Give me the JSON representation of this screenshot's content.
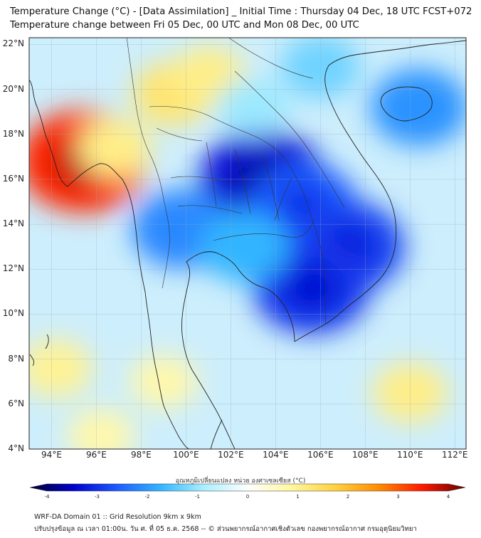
{
  "header": {
    "title_line1": "Temperature Change (°C) - [Data Assimilation] _ Initial Time : Thursday 04 Dec, 18 UTC FCST+072",
    "title_line2": "Temperature change between Fri 05 Dec, 00 UTC and Mon 08 Dec, 00 UTC"
  },
  "map": {
    "lat_labels": [
      "22°N",
      "20°N",
      "18°N",
      "16°N",
      "14°N",
      "12°N",
      "10°N",
      "8°N",
      "6°N",
      "4°N"
    ],
    "lon_labels": [
      "94°E",
      "96°E",
      "98°E",
      "100°E",
      "102°E",
      "104°E",
      "106°E",
      "108°E",
      "110°E",
      "112°E"
    ],
    "lat_values": [
      22,
      20,
      18,
      16,
      14,
      12,
      10,
      8,
      6,
      4
    ],
    "lon_values": [
      94,
      96,
      98,
      100,
      102,
      104,
      106,
      108,
      110,
      112
    ],
    "extent": {
      "lon_min": 93,
      "lon_max": 112.5,
      "lat_min": 4,
      "lat_max": 22.3
    },
    "anomalies": [
      {
        "lon": 95.4,
        "lat": 16.8,
        "value": 3.1
      },
      {
        "lon": 96.8,
        "lat": 17.4,
        "value": 1.0
      },
      {
        "lon": 99.4,
        "lat": 19.8,
        "value": 1.2
      },
      {
        "lon": 101.0,
        "lat": 20.6,
        "value": 1.0
      },
      {
        "lon": 99.0,
        "lat": 7.0,
        "value": 0.7
      },
      {
        "lon": 94.2,
        "lat": 7.6,
        "value": 0.9
      },
      {
        "lon": 96.2,
        "lat": 4.6,
        "value": 0.7
      },
      {
        "lon": 110.0,
        "lat": 6.5,
        "value": 1.0
      },
      {
        "lon": 103.4,
        "lat": 16.0,
        "value": -3.0
      },
      {
        "lon": 105.2,
        "lat": 14.8,
        "value": -2.4
      },
      {
        "lon": 99.8,
        "lat": 13.8,
        "value": -2.0
      },
      {
        "lon": 107.2,
        "lat": 13.0,
        "value": -2.6
      },
      {
        "lon": 105.6,
        "lat": 11.2,
        "value": -2.7
      },
      {
        "lon": 102.6,
        "lat": 13.0,
        "value": -1.6
      },
      {
        "lon": 110.4,
        "lat": 19.2,
        "value": -1.9
      },
      {
        "lon": 106.0,
        "lat": 21.0,
        "value": -1.2
      },
      {
        "lon": 103.0,
        "lat": 19.2,
        "value": -0.9
      }
    ]
  },
  "colorbar": {
    "title": "อุณหภูมิเปลี่ยนแปลง หน่วย องศาเซลเซียส (°C)",
    "ticks": [
      "-4",
      "-3",
      "-2",
      "-1",
      "0",
      "1",
      "2",
      "3",
      "4"
    ],
    "min": -4,
    "max": 4,
    "stops": [
      "#000033",
      "#0000cc",
      "#1e5bff",
      "#33b5ff",
      "#aaf0ff",
      "#ffffff",
      "#fff7a0",
      "#ffd23f",
      "#ff8c00",
      "#ff1a00",
      "#660000"
    ]
  },
  "footer": {
    "line1": "WRF-DA Domain 01 :: Grid Resolution 9km x 9km",
    "line2": "ปรับปรุงข้อมูล ณ เวลา 01:00น. วัน ศ. ที่ 05 ธ.ค. 2568 -- © ส่วนพยากรณ์อากาศเชิงตัวเลข กองพยากรณ์อากาศ กรมอุตุนิยมวิทยา"
  }
}
